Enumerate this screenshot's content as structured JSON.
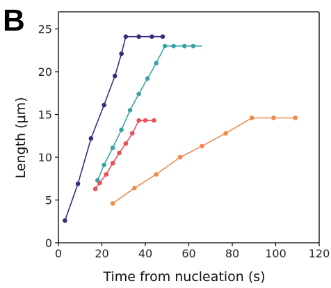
{
  "chart_data": {
    "type": "line",
    "panel_label": "B",
    "title": "",
    "xlabel": "Time from nucleation (s)",
    "ylabel": "Length (μm)",
    "xlim": [
      0,
      120
    ],
    "ylim": [
      0,
      27
    ],
    "xticks": [
      0,
      20,
      40,
      60,
      80,
      100,
      120
    ],
    "yticks": [
      0,
      5,
      10,
      15,
      20,
      25
    ],
    "grid": false,
    "legend": "none",
    "series": [
      {
        "color": "#3b2a7a",
        "x": [
          3,
          9,
          15,
          21,
          26,
          29,
          31,
          37,
          43,
          48
        ],
        "y": [
          2.6,
          6.9,
          12.2,
          16.1,
          19.5,
          22.1,
          24.1,
          24.1,
          24.1,
          24.1
        ]
      },
      {
        "color": "#3aa3a6",
        "x": [
          18,
          21,
          25,
          29,
          33,
          37,
          41,
          45,
          49,
          53,
          58,
          62,
          66
        ],
        "y": [
          7.3,
          9.1,
          11.1,
          13.2,
          15.5,
          17.4,
          19.2,
          21.0,
          23.0,
          23.0,
          23.0,
          23.0,
          23.0
        ],
        "last_point": false
      },
      {
        "color": "#e8505b",
        "x": [
          17,
          19,
          22,
          25,
          28,
          31,
          34,
          37,
          40,
          44
        ],
        "y": [
          6.3,
          7.0,
          8.0,
          9.3,
          10.5,
          11.6,
          12.8,
          14.3,
          14.3,
          14.3
        ]
      },
      {
        "color": "#f08a4b",
        "x": [
          25,
          35,
          45,
          56,
          66,
          77,
          89,
          99,
          109
        ],
        "y": [
          4.6,
          6.4,
          8.0,
          10.0,
          11.3,
          12.8,
          14.6,
          14.6,
          14.6
        ]
      }
    ]
  }
}
